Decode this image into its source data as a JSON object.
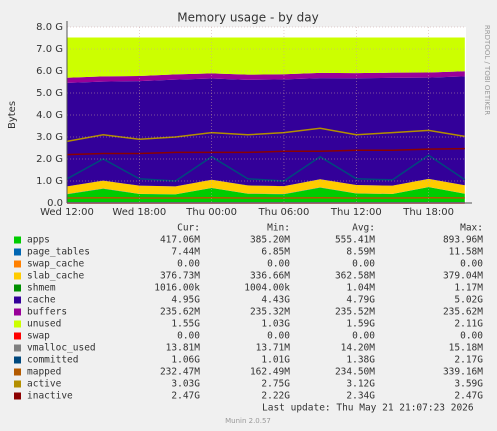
{
  "chart_data": {
    "type": "area",
    "title": "Memory usage - by day",
    "y_label": "Bytes",
    "side_text": "RRDTOOL / TOBI OETIKER",
    "x": [
      0,
      3,
      6,
      9,
      12,
      15,
      18,
      21,
      24,
      27,
      30,
      33
    ],
    "xlim": [
      0,
      33.1
    ],
    "xticks": [
      {
        "value": 0,
        "label": "Wed 12:00"
      },
      {
        "value": 6,
        "label": "Wed 18:00"
      },
      {
        "value": 12,
        "label": "Thu 00:00"
      },
      {
        "value": 18,
        "label": "Thu 06:00"
      },
      {
        "value": 24,
        "label": "Thu 12:00"
      },
      {
        "value": 30,
        "label": "Thu 18:00"
      }
    ],
    "ylim": [
      0,
      8000000000.0
    ],
    "yticks": [
      {
        "value": 0,
        "label": "0.0"
      },
      {
        "value": 1000000000.0,
        "label": "1.0 G"
      },
      {
        "value": 2000000000.0,
        "label": "2.0 G"
      },
      {
        "value": 3000000000.0,
        "label": "3.0 G"
      },
      {
        "value": 4000000000.0,
        "label": "4.0 G"
      },
      {
        "value": 5000000000.0,
        "label": "5.0 G"
      },
      {
        "value": 6000000000.0,
        "label": "6.0 G"
      },
      {
        "value": 7000000000.0,
        "label": "7.0 G"
      },
      {
        "value": 8000000000.0,
        "label": "8.0 G"
      }
    ],
    "grid": true,
    "series": [
      {
        "name": "apps",
        "color": "#00cc00",
        "stacked": true,
        "values": [
          400000000.0,
          650000000.0,
          410000000.0,
          390000000.0,
          680000000.0,
          420000000.0,
          400000000.0,
          700000000.0,
          430000000.0,
          410000000.0,
          720000000.0,
          420000000.0
        ]
      },
      {
        "name": "page_tables",
        "color": "#0066b3",
        "stacked": true,
        "values": [
          7400000.0,
          7400000.0,
          7400000.0,
          7400000.0,
          7400000.0,
          7400000.0,
          7400000.0,
          7400000.0,
          7400000.0,
          7400000.0,
          7400000.0,
          7400000.0
        ]
      },
      {
        "name": "swap_cache",
        "color": "#ff8000",
        "stacked": true,
        "values": [
          0,
          0,
          0,
          0,
          0,
          0,
          0,
          0,
          0,
          0,
          0,
          0
        ]
      },
      {
        "name": "slab_cache",
        "color": "#ffcc00",
        "stacked": true,
        "values": [
          350000000.0,
          360000000.0,
          370000000.0,
          360000000.0,
          370000000.0,
          370000000.0,
          360000000.0,
          370000000.0,
          380000000.0,
          370000000.0,
          370000000.0,
          377000000.0
        ]
      },
      {
        "name": "shmem",
        "color": "#008f00",
        "stacked": true,
        "values": [
          1000000.0,
          1000000.0,
          1000000.0,
          1000000.0,
          1000000.0,
          1000000.0,
          1000000.0,
          1000000.0,
          1000000.0,
          1000000.0,
          1000000.0,
          1000000.0
        ]
      },
      {
        "name": "cache",
        "color": "#330099",
        "stacked": true,
        "values": [
          4700000000.0,
          4500000000.0,
          4750000000.0,
          4850000000.0,
          4600000000.0,
          4800000000.0,
          4850000000.0,
          4600000000.0,
          4850000000.0,
          4900000000.0,
          4600000000.0,
          4950000000.0
        ]
      },
      {
        "name": "buffers",
        "color": "#990099",
        "stacked": true,
        "values": [
          235500000.0,
          235500000.0,
          235500000.0,
          235500000.0,
          235500000.0,
          235500000.0,
          235500000.0,
          235500000.0,
          235500000.0,
          235500000.0,
          235500000.0,
          235500000.0
        ]
      },
      {
        "name": "unused",
        "color": "#ccff00",
        "stacked": true,
        "values": [
          1826000000.0,
          1766000000.0,
          1746000000.0,
          1676000000.0,
          1626000000.0,
          1686000000.0,
          1666000000.0,
          1606000000.0,
          1616000000.0,
          1596000000.0,
          1586000000.0,
          1529000000.0
        ]
      },
      {
        "name": "swap",
        "color": "#ff0000",
        "values": [
          0,
          0,
          0,
          0,
          0,
          0,
          0,
          0,
          0,
          0,
          0,
          0
        ]
      },
      {
        "name": "vmalloc_used",
        "color": "#808080",
        "values": [
          14000000.0,
          14000000.0,
          14000000.0,
          14000000.0,
          14000000.0,
          14000000.0,
          14000000.0,
          14000000.0,
          14000000.0,
          14000000.0,
          14000000.0,
          14000000.0
        ]
      },
      {
        "name": "committed",
        "color": "#00487d",
        "values": [
          1100000000.0,
          2000000000.0,
          1100000000.0,
          1000000000.0,
          2100000000.0,
          1100000000.0,
          1000000000.0,
          2100000000.0,
          1100000000.0,
          1050000000.0,
          2170000000.0,
          1060000000.0
        ]
      },
      {
        "name": "mapped",
        "color": "#b35a00",
        "values": [
          230000000.0,
          240000000.0,
          230000000.0,
          230000000.0,
          240000000.0,
          230000000.0,
          230000000.0,
          240000000.0,
          230000000.0,
          230000000.0,
          240000000.0,
          232000000.0
        ]
      },
      {
        "name": "active",
        "color": "#b38f00",
        "values": [
          2800000000.0,
          3100000000.0,
          2900000000.0,
          3000000000.0,
          3200000000.0,
          3100000000.0,
          3200000000.0,
          3400000000.0,
          3100000000.0,
          3200000000.0,
          3300000000.0,
          3030000000.0
        ]
      },
      {
        "name": "inactive",
        "color": "#8b0000",
        "values": [
          2200000000.0,
          2250000000.0,
          2250000000.0,
          2300000000.0,
          2300000000.0,
          2300000000.0,
          2350000000.0,
          2350000000.0,
          2400000000.0,
          2400000000.0,
          2450000000.0,
          2470000000.0
        ]
      }
    ]
  },
  "legend_table": {
    "columns": [
      "Cur:",
      "Min:",
      "Avg:",
      "Max:"
    ],
    "rows": [
      [
        "417.06M",
        "385.20M",
        "555.41M",
        "893.96M"
      ],
      [
        "7.44M",
        "6.85M",
        "8.59M",
        "11.58M"
      ],
      [
        "0.00",
        "0.00",
        "0.00",
        "0.00"
      ],
      [
        "376.73M",
        "336.66M",
        "362.58M",
        "379.04M"
      ],
      [
        "1016.00k",
        "1004.00k",
        "1.04M",
        "1.17M"
      ],
      [
        "4.95G",
        "4.43G",
        "4.79G",
        "5.02G"
      ],
      [
        "235.62M",
        "235.32M",
        "235.52M",
        "235.62M"
      ],
      [
        "1.55G",
        "1.03G",
        "1.59G",
        "2.11G"
      ],
      [
        "0.00",
        "0.00",
        "0.00",
        "0.00"
      ],
      [
        "13.81M",
        "13.71M",
        "14.20M",
        "15.18M"
      ],
      [
        "1.06G",
        "1.01G",
        "1.38G",
        "2.17G"
      ],
      [
        "232.47M",
        "162.49M",
        "234.50M",
        "339.16M"
      ],
      [
        "3.03G",
        "2.75G",
        "3.12G",
        "3.59G"
      ],
      [
        "2.47G",
        "2.22G",
        "2.34G",
        "2.47G"
      ]
    ]
  },
  "footer": {
    "last_update": "Last update: Thu May 21 21:07:23 2026",
    "version": "Munin 2.0.57"
  }
}
